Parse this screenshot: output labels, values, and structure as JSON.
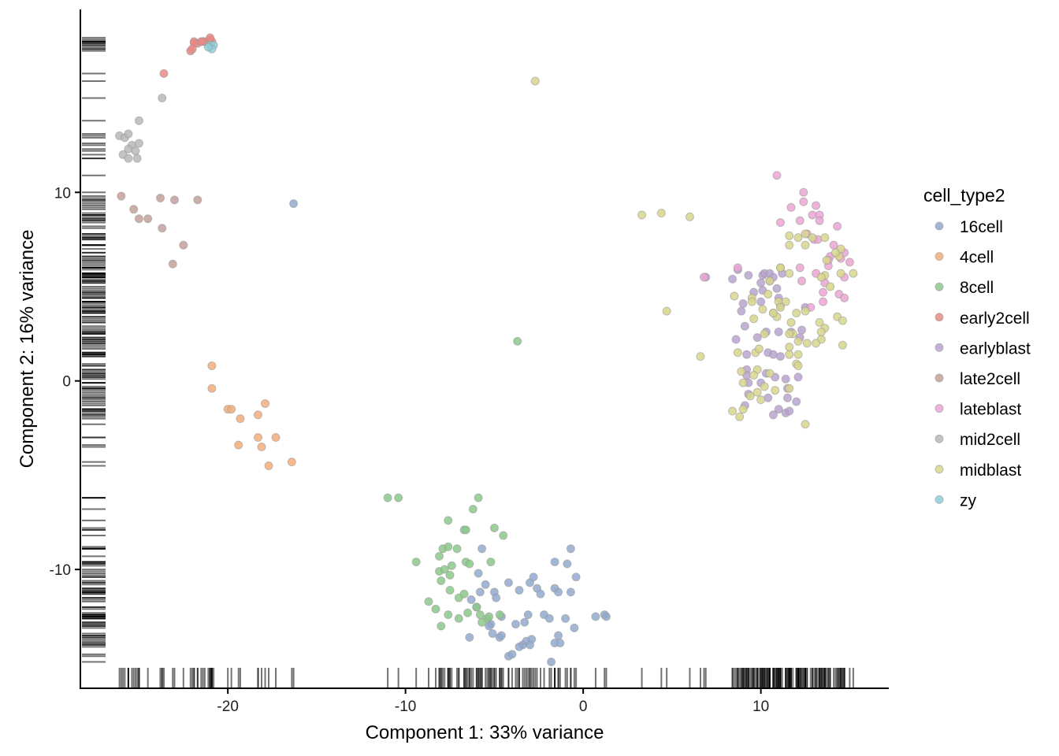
{
  "chart_data": {
    "type": "scatter",
    "title": "",
    "xlabel": "Component 1: 33% variance",
    "ylabel": "Component 2: 16% variance",
    "xlim": [
      -28.3,
      17.2
    ],
    "ylim": [
      -16.3,
      19.7
    ],
    "x_ticks": [
      -20,
      -10,
      0,
      10
    ],
    "y_ticks": [
      -10,
      0,
      10
    ],
    "x_tick_labels": [
      "-20",
      "-10",
      "0",
      "10"
    ],
    "y_tick_labels": [
      "-10",
      "0",
      "10"
    ],
    "grid": false,
    "marginal_rug": true,
    "legend": {
      "title": "cell_type2",
      "position": "right"
    },
    "series": [
      {
        "name": "16cell",
        "color": "#92a9cf",
        "points": [
          [
            -16.3,
            9.4
          ],
          [
            -5.7,
            -8.9
          ],
          [
            -6.3,
            -11.6
          ],
          [
            -5.8,
            -11.2
          ],
          [
            -5.9,
            -10.2
          ],
          [
            -5.5,
            -10.8
          ],
          [
            -5.0,
            -11.2
          ],
          [
            -4.9,
            -11.5
          ],
          [
            -4.2,
            -10.7
          ],
          [
            -6.0,
            -12.0
          ],
          [
            -5.2,
            -12.9
          ],
          [
            -4.6,
            -12.5
          ],
          [
            -5.3,
            -13.0
          ],
          [
            -3.8,
            -12.9
          ],
          [
            -3.3,
            -12.8
          ],
          [
            -3.1,
            -12.4
          ],
          [
            -3.6,
            -11.1
          ],
          [
            -3.0,
            -10.7
          ],
          [
            -2.8,
            -10.4
          ],
          [
            -2.6,
            -11.0
          ],
          [
            -2.4,
            -11.3
          ],
          [
            -2.2,
            -12.4
          ],
          [
            -1.9,
            -12.6
          ],
          [
            -1.6,
            -11.0
          ],
          [
            -1.4,
            -11.2
          ],
          [
            -1.6,
            -9.6
          ],
          [
            -0.9,
            -9.7
          ],
          [
            -0.7,
            -11.2
          ],
          [
            -0.4,
            -10.4
          ],
          [
            -0.7,
            -8.9
          ],
          [
            -1.0,
            -12.6
          ],
          [
            -0.5,
            -13.1
          ],
          [
            0.7,
            -12.5
          ],
          [
            1.2,
            -12.4
          ],
          [
            1.3,
            -12.5
          ],
          [
            -6.4,
            -13.6
          ],
          [
            -5.1,
            -13.4
          ],
          [
            -4.7,
            -13.6
          ],
          [
            -4.6,
            -13.5
          ],
          [
            -3.4,
            -14.0
          ],
          [
            -3.2,
            -13.8
          ],
          [
            -2.9,
            -13.7
          ],
          [
            -3.0,
            -14.0
          ],
          [
            -1.6,
            -13.9
          ],
          [
            -1.4,
            -13.5
          ],
          [
            -1.3,
            -13.9
          ],
          [
            -1.8,
            -14.9
          ],
          [
            -3.6,
            -14.1
          ],
          [
            -4.2,
            -14.6
          ],
          [
            -4.0,
            -14.5
          ]
        ]
      },
      {
        "name": "4cell",
        "color": "#f5ad79",
        "points": [
          [
            -20.9,
            0.8
          ],
          [
            -20.9,
            -0.4
          ],
          [
            -20.0,
            -1.5
          ],
          [
            -19.8,
            -1.5
          ],
          [
            -19.3,
            -2.0
          ],
          [
            -18.3,
            -1.8
          ],
          [
            -17.9,
            -1.2
          ],
          [
            -18.3,
            -3.0
          ],
          [
            -17.3,
            -3.0
          ],
          [
            -19.4,
            -3.4
          ],
          [
            -18.1,
            -3.5
          ],
          [
            -17.7,
            -4.5
          ],
          [
            -16.4,
            -4.3
          ]
        ]
      },
      {
        "name": "8cell",
        "color": "#8cc98b",
        "points": [
          [
            -3.7,
            2.1
          ],
          [
            -11.0,
            -6.2
          ],
          [
            -10.4,
            -6.2
          ],
          [
            -5.9,
            -6.2
          ],
          [
            -6.2,
            -6.8
          ],
          [
            -6.7,
            -7.9
          ],
          [
            -6.6,
            -7.9
          ],
          [
            -5.0,
            -7.8
          ],
          [
            -4.5,
            -8.2
          ],
          [
            -7.6,
            -7.4
          ],
          [
            -7.9,
            -8.9
          ],
          [
            -7.6,
            -8.8
          ],
          [
            -7.1,
            -8.9
          ],
          [
            -8.1,
            -9.3
          ],
          [
            -9.4,
            -9.6
          ],
          [
            -8.1,
            -10.1
          ],
          [
            -7.8,
            -10.0
          ],
          [
            -7.4,
            -9.8
          ],
          [
            -6.6,
            -9.6
          ],
          [
            -6.4,
            -9.7
          ],
          [
            -5.2,
            -9.6
          ],
          [
            -7.5,
            -10.3
          ],
          [
            -8.0,
            -10.6
          ],
          [
            -7.5,
            -11.1
          ],
          [
            -7.0,
            -11.5
          ],
          [
            -6.7,
            -11.3
          ],
          [
            -8.7,
            -11.7
          ],
          [
            -8.3,
            -12.1
          ],
          [
            -7.6,
            -12.4
          ],
          [
            -6.5,
            -12.3
          ],
          [
            -6.0,
            -12.0
          ],
          [
            -5.8,
            -12.4
          ],
          [
            -4.7,
            -12.4
          ],
          [
            -5.4,
            -12.6
          ],
          [
            -5.7,
            -12.8
          ],
          [
            -5.3,
            -12.5
          ],
          [
            -8.0,
            -13.0
          ],
          [
            -7.0,
            -12.6
          ]
        ]
      },
      {
        "name": "early2cell",
        "color": "#ea8a84",
        "points": [
          [
            -21.9,
            18.0
          ],
          [
            -21.7,
            17.9
          ],
          [
            -21.4,
            18.0
          ],
          [
            -21.3,
            18.0
          ],
          [
            -21.0,
            18.1
          ],
          [
            -20.9,
            18.0
          ],
          [
            -22.1,
            17.5
          ],
          [
            -23.6,
            16.3
          ],
          [
            -21.0,
            18.2
          ],
          [
            -21.5,
            18.0
          ],
          [
            -21.9,
            17.9
          ],
          [
            -22.0,
            17.6
          ]
        ]
      },
      {
        "name": "earlyblast",
        "color": "#b8a3d1",
        "points": [
          [
            6.9,
            5.5
          ],
          [
            8.4,
            5.4
          ],
          [
            8.7,
            5.9
          ],
          [
            9.3,
            5.6
          ],
          [
            10.1,
            5.6
          ],
          [
            10.2,
            5.7
          ],
          [
            10.5,
            5.7
          ],
          [
            11.2,
            5.7
          ],
          [
            10.5,
            5.3
          ],
          [
            10.7,
            5.5
          ],
          [
            10.0,
            5.2
          ],
          [
            10.1,
            4.8
          ],
          [
            10.9,
            4.9
          ],
          [
            9.6,
            4.7
          ],
          [
            10.0,
            4.2
          ],
          [
            11.0,
            4.4
          ],
          [
            11.1,
            4.0
          ],
          [
            12.5,
            3.9
          ],
          [
            9.0,
            4.1
          ],
          [
            8.9,
            3.7
          ],
          [
            9.1,
            2.9
          ],
          [
            8.6,
            2.2
          ],
          [
            9.8,
            2.3
          ],
          [
            10.3,
            2.6
          ],
          [
            11.0,
            2.6
          ],
          [
            11.7,
            2.6
          ],
          [
            12.3,
            2.7
          ],
          [
            10.4,
            1.5
          ],
          [
            10.7,
            1.4
          ],
          [
            11.1,
            1.3
          ],
          [
            9.2,
            1.4
          ],
          [
            9.2,
            0.6
          ],
          [
            9.2,
            0.3
          ],
          [
            9.3,
            -0.1
          ],
          [
            9.3,
            -0.7
          ],
          [
            10.0,
            -0.1
          ],
          [
            10.3,
            0.4
          ],
          [
            10.8,
            0.2
          ],
          [
            11.4,
            0.1
          ],
          [
            11.5,
            -0.4
          ],
          [
            12.1,
            0.2
          ],
          [
            11.5,
            -0.9
          ],
          [
            12.0,
            -1.1
          ],
          [
            9.1,
            -1.3
          ],
          [
            10.4,
            -0.9
          ],
          [
            11.0,
            -1.5
          ],
          [
            10.7,
            -1.8
          ],
          [
            11.4,
            -1.7
          ],
          [
            11.6,
            -1.6
          ],
          [
            12.2,
            2.3
          ]
        ]
      },
      {
        "name": "late2cell",
        "color": "#c4a09a",
        "points": [
          [
            -26.0,
            9.8
          ],
          [
            -25.3,
            9.1
          ],
          [
            -25.0,
            8.6
          ],
          [
            -24.5,
            8.6
          ],
          [
            -23.8,
            9.7
          ],
          [
            -23.0,
            9.6
          ],
          [
            -21.7,
            9.6
          ],
          [
            -23.7,
            8.1
          ],
          [
            -22.5,
            7.2
          ],
          [
            -23.1,
            6.2
          ]
        ]
      },
      {
        "name": "lateblast",
        "color": "#eca5d3",
        "points": [
          [
            10.9,
            10.9
          ],
          [
            12.4,
            10.0
          ],
          [
            12.4,
            9.5
          ],
          [
            13.1,
            9.3
          ],
          [
            11.7,
            9.2
          ],
          [
            12.9,
            8.8
          ],
          [
            13.3,
            8.8
          ],
          [
            13.3,
            8.5
          ],
          [
            12.2,
            8.5
          ],
          [
            11.1,
            8.4
          ],
          [
            14.3,
            8.2
          ],
          [
            12.6,
            7.8
          ],
          [
            13.0,
            7.5
          ],
          [
            13.2,
            7.5
          ],
          [
            14.1,
            7.2
          ],
          [
            13.9,
            6.6
          ],
          [
            13.8,
            6.4
          ],
          [
            14.5,
            6.5
          ],
          [
            14.7,
            6.8
          ],
          [
            15.0,
            6.3
          ],
          [
            13.8,
            6.1
          ],
          [
            12.2,
            6.0
          ],
          [
            13.1,
            5.7
          ],
          [
            12.3,
            5.3
          ],
          [
            13.6,
            5.2
          ],
          [
            14.7,
            5.5
          ],
          [
            13.5,
            4.7
          ],
          [
            14.4,
            4.6
          ],
          [
            13.5,
            4.2
          ],
          [
            14.7,
            4.4
          ],
          [
            12.8,
            3.9
          ],
          [
            6.8,
            5.5
          ],
          [
            8.7,
            6.0
          ]
        ]
      },
      {
        "name": "mid2cell",
        "color": "#b8b8b8",
        "points": [
          [
            -23.7,
            15.0
          ],
          [
            -25.0,
            13.8
          ],
          [
            -26.1,
            13.0
          ],
          [
            -25.8,
            12.9
          ],
          [
            -25.6,
            13.1
          ],
          [
            -25.0,
            12.6
          ],
          [
            -25.4,
            12.5
          ],
          [
            -25.6,
            12.3
          ],
          [
            -25.2,
            12.2
          ],
          [
            -25.9,
            12.0
          ],
          [
            -25.6,
            11.8
          ],
          [
            -25.1,
            11.8
          ]
        ]
      },
      {
        "name": "midblast",
        "color": "#d8d68c",
        "points": [
          [
            -2.7,
            15.9
          ],
          [
            3.3,
            8.8
          ],
          [
            4.4,
            8.9
          ],
          [
            6.0,
            8.7
          ],
          [
            4.7,
            3.7
          ],
          [
            6.6,
            1.3
          ],
          [
            11.6,
            7.7
          ],
          [
            12.5,
            7.8
          ],
          [
            12.1,
            7.6
          ],
          [
            12.9,
            7.6
          ],
          [
            11.6,
            7.2
          ],
          [
            13.6,
            7.6
          ],
          [
            12.5,
            7.2
          ],
          [
            14.5,
            7.0
          ],
          [
            14.4,
            6.6
          ],
          [
            14.2,
            6.8
          ],
          [
            13.7,
            6.4
          ],
          [
            11.1,
            6.0
          ],
          [
            11.6,
            5.7
          ],
          [
            11.1,
            6.0
          ],
          [
            14.5,
            5.7
          ],
          [
            15.2,
            5.7
          ],
          [
            13.6,
            5.6
          ],
          [
            13.4,
            5.5
          ],
          [
            10.5,
            5.3
          ],
          [
            13.9,
            5.0
          ],
          [
            10.4,
            4.6
          ],
          [
            9.5,
            4.4
          ],
          [
            8.5,
            4.5
          ],
          [
            9.5,
            4.2
          ],
          [
            11.0,
            4.2
          ],
          [
            11.4,
            4.2
          ],
          [
            10.7,
            3.6
          ],
          [
            10.1,
            3.8
          ],
          [
            11.1,
            3.9
          ],
          [
            10.9,
            3.4
          ],
          [
            10.7,
            3.6
          ],
          [
            14.3,
            3.4
          ],
          [
            14.6,
            3.2
          ],
          [
            12.5,
            3.7
          ],
          [
            12.0,
            3.6
          ],
          [
            9.6,
            3.3
          ],
          [
            11.7,
            3.1
          ],
          [
            11.8,
            2.5
          ],
          [
            13.3,
            3.1
          ],
          [
            13.6,
            2.8
          ],
          [
            11.6,
            2.5
          ],
          [
            13.4,
            2.6
          ],
          [
            10.2,
            2.5
          ],
          [
            12.1,
            2.1
          ],
          [
            13.4,
            2.2
          ],
          [
            12.6,
            2.0
          ],
          [
            13.1,
            2.0
          ],
          [
            14.6,
            1.9
          ],
          [
            11.6,
            1.8
          ],
          [
            12.1,
            1.4
          ],
          [
            9.7,
            1.5
          ],
          [
            8.7,
            1.5
          ],
          [
            9.9,
            1.7
          ],
          [
            11.6,
            1.4
          ],
          [
            12.0,
            0.9
          ],
          [
            12.1,
            0.8
          ],
          [
            9.8,
            0.6
          ],
          [
            8.9,
            0.5
          ],
          [
            10.5,
            0.4
          ],
          [
            9.6,
            0.3
          ],
          [
            9.0,
            -0.1
          ],
          [
            10.2,
            -0.3
          ],
          [
            11.6,
            -0.4
          ],
          [
            10.0,
            -1.0
          ],
          [
            9.4,
            -0.8
          ],
          [
            9.8,
            -0.6
          ],
          [
            8.4,
            -1.6
          ],
          [
            9.0,
            -1.5
          ],
          [
            8.8,
            -1.9
          ],
          [
            10.8,
            -0.5
          ],
          [
            12.5,
            -2.3
          ]
        ]
      },
      {
        "name": "zy",
        "color": "#8fcfd9",
        "points": [
          [
            -21.0,
            17.8
          ],
          [
            -20.8,
            17.8
          ],
          [
            -20.9,
            17.6
          ],
          [
            -21.1,
            17.7
          ]
        ]
      }
    ]
  }
}
